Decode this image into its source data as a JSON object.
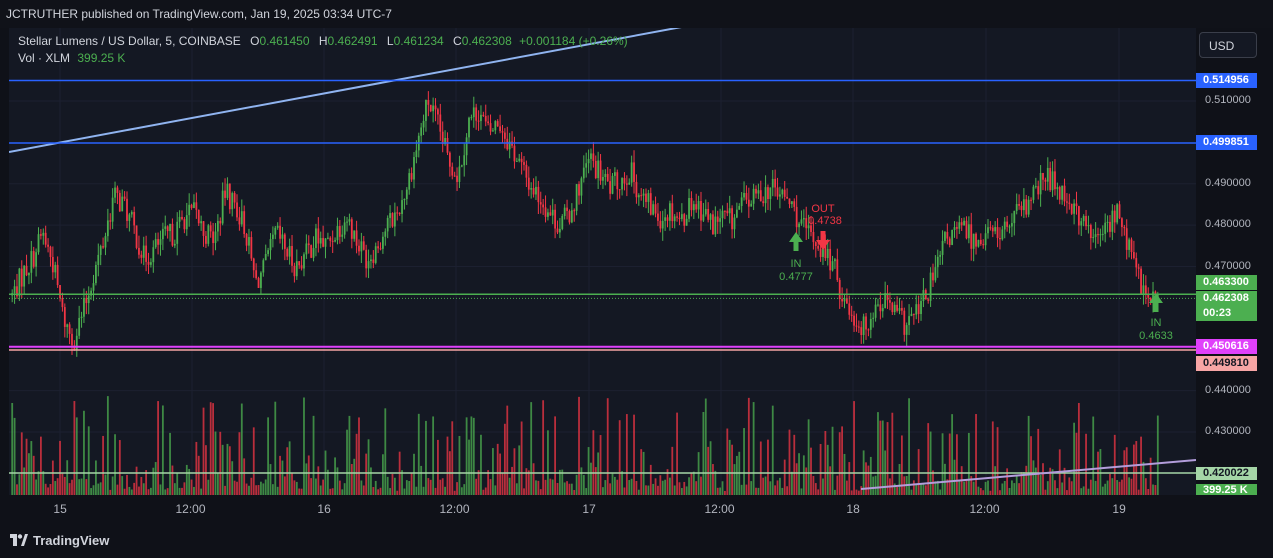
{
  "header": {
    "published_text": "JCTRUTHER published on TradingView.com, Jan 19, 2025 03:34 UTC-7"
  },
  "legend": {
    "symbol": "Stellar Lumens / US Dollar, 5, COINBASE",
    "o_label": "O",
    "o_value": "0.461450",
    "h_label": "H",
    "h_value": "0.462491",
    "l_label": "L",
    "l_value": "0.461234",
    "c_label": "C",
    "c_value": "0.462308",
    "change": "+0.001184 (+0.26%)",
    "volume_label": "Vol · XLM",
    "volume_value": "399.25 K"
  },
  "currency_button": {
    "label": "USD"
  },
  "price_axis": {
    "ticks": [
      "0.510000",
      "0.490000",
      "0.480000",
      "0.470000",
      "0.440000",
      "0.430000"
    ],
    "tick_values": [
      0.51,
      0.49,
      0.48,
      0.47,
      0.44,
      0.43
    ]
  },
  "badges": [
    {
      "id": "resistance-top",
      "text": "0.514956",
      "value": 0.514956,
      "bg": "#2962ff",
      "fg": "#ffffff"
    },
    {
      "id": "resistance-mid",
      "text": "0.499851",
      "value": 0.499851,
      "bg": "#2962ff",
      "fg": "#ffffff"
    },
    {
      "id": "support-green",
      "text": "0.463300",
      "value": 0.4633,
      "bg": "#4caf50",
      "fg": "#ffffff"
    },
    {
      "id": "last-price",
      "text": "0.462308",
      "value": 0.462308,
      "bg": "#4caf50",
      "fg": "#ffffff"
    },
    {
      "id": "countdown",
      "text": "00:23",
      "value": null,
      "bg": "#4caf50",
      "fg": "#ffffff"
    },
    {
      "id": "support-magenta",
      "text": "0.450616",
      "value": 0.450616,
      "bg": "#e040fb",
      "fg": "#ffffff"
    },
    {
      "id": "support-pink",
      "text": "0.449810",
      "value": 0.44981,
      "bg": "#f7a5a5",
      "fg": "#131722"
    },
    {
      "id": "volume-line",
      "text": "0.420022",
      "value": 0.420022,
      "bg": "#a5d6a7",
      "fg": "#131722"
    },
    {
      "id": "volume-last",
      "text": "399.25 K",
      "value": null,
      "bg": "#4caf50",
      "fg": "#ffffff"
    }
  ],
  "time_axis": {
    "labels": [
      "15",
      "12:00",
      "16",
      "12:00",
      "17",
      "12:00",
      "18",
      "12:00",
      "19"
    ]
  },
  "annotations": [
    {
      "type": "in",
      "label": "IN",
      "price": "0.4777",
      "color": "#4caf50"
    },
    {
      "type": "out",
      "label": "OUT",
      "price": "0.4738",
      "color": "#f23645"
    },
    {
      "type": "in",
      "label": "IN",
      "price": "0.4633",
      "color": "#4caf50"
    }
  ],
  "chart_data": {
    "type": "candlestick",
    "symbol": "XLMUSD",
    "exchange": "COINBASE",
    "interval": "5",
    "y_range": [
      0.4175,
      0.5275
    ],
    "x_labels": [
      "15",
      "12:00",
      "16",
      "12:00",
      "17",
      "12:00",
      "18",
      "12:00",
      "19"
    ],
    "close_path": [
      0.463,
      0.468,
      0.472,
      0.478,
      0.471,
      0.458,
      0.452,
      0.459,
      0.468,
      0.476,
      0.487,
      0.485,
      0.479,
      0.472,
      0.474,
      0.477,
      0.478,
      0.482,
      0.483,
      0.478,
      0.477,
      0.488,
      0.485,
      0.479,
      0.466,
      0.47,
      0.478,
      0.474,
      0.47,
      0.473,
      0.477,
      0.475,
      0.479,
      0.482,
      0.476,
      0.472,
      0.475,
      0.48,
      0.483,
      0.49,
      0.5,
      0.51,
      0.504,
      0.496,
      0.492,
      0.505,
      0.508,
      0.502,
      0.505,
      0.5,
      0.495,
      0.49,
      0.487,
      0.483,
      0.48,
      0.483,
      0.49,
      0.496,
      0.492,
      0.489,
      0.491,
      0.493,
      0.487,
      0.484,
      0.482,
      0.484,
      0.481,
      0.486,
      0.484,
      0.48,
      0.482,
      0.481,
      0.485,
      0.486,
      0.488,
      0.489,
      0.487,
      0.484,
      0.479,
      0.477,
      0.474,
      0.47,
      0.462,
      0.458,
      0.455,
      0.46,
      0.462,
      0.459,
      0.456,
      0.458,
      0.462,
      0.468,
      0.476,
      0.478,
      0.479,
      0.476,
      0.478,
      0.478,
      0.479,
      0.482,
      0.484,
      0.488,
      0.492,
      0.49,
      0.487,
      0.483,
      0.479,
      0.476,
      0.48,
      0.483,
      0.476,
      0.468,
      0.462,
      0.4623
    ],
    "volume": {
      "last": "399.25 K",
      "series_name": "Vol · XLM"
    },
    "levels": [
      {
        "name": "resistance",
        "value": 0.514956,
        "color": "#2962ff"
      },
      {
        "name": "resistance",
        "value": 0.499851,
        "color": "#2962ff"
      },
      {
        "name": "support",
        "value": 0.4633,
        "color": "#4caf50"
      },
      {
        "name": "support",
        "value": 0.450616,
        "color": "#e040fb"
      },
      {
        "name": "support",
        "value": 0.44981,
        "color": "#f7a5a5"
      }
    ],
    "colors": {
      "up": "#4caf50",
      "down": "#f23645",
      "trend": "#90b4f0",
      "volume_trend": "#b39ddb"
    }
  },
  "footer": {
    "brand": "TradingView"
  }
}
